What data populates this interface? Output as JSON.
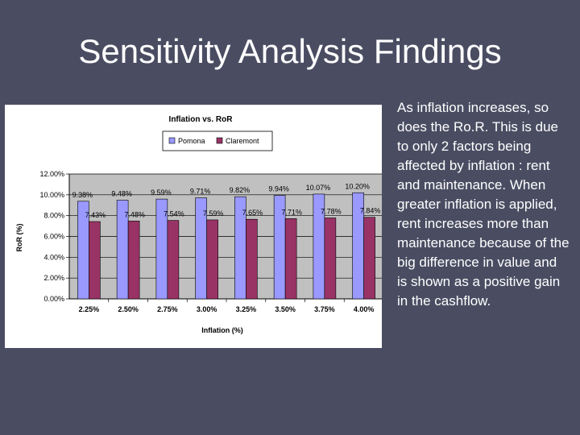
{
  "slide": {
    "title": "Sensitivity Analysis Findings",
    "body_text": "As inflation increases, so does the Ro.R. This is due to only 2 factors being affected by inflation : rent and maintenance. When greater inflation is applied, rent increases more than maintenance because of the big difference in value and is shown as a positive gain in the cashflow."
  },
  "colors": {
    "background": "#4a4d62",
    "plot_area": "#c0c0c0",
    "pomona": "#9999ff",
    "claremont": "#993366"
  },
  "chart_data": {
    "type": "bar",
    "title": "Inflation vs. RoR",
    "xlabel": "Inflation (%)",
    "ylabel": "RoR (%)",
    "categories": [
      "2.25%",
      "2.50%",
      "2.75%",
      "3.00%",
      "3.25%",
      "3.50%",
      "3.75%",
      "4.00%"
    ],
    "ylim": [
      0,
      12
    ],
    "yticks": [
      0,
      2,
      4,
      6,
      8,
      10,
      12
    ],
    "ytick_labels": [
      "0.00%",
      "2.00%",
      "4.00%",
      "6.00%",
      "8.00%",
      "10.00%",
      "12.00%"
    ],
    "grid": true,
    "legend_position": "top",
    "series": [
      {
        "name": "Pomona",
        "values": [
          9.38,
          9.48,
          9.59,
          9.71,
          9.82,
          9.94,
          10.07,
          10.2
        ],
        "labels": [
          "9.38%",
          "9.48%",
          "9.59%",
          "9.71%",
          "9.82%",
          "9.94%",
          "10.07%",
          "10.20%"
        ]
      },
      {
        "name": "Claremont",
        "values": [
          7.43,
          7.48,
          7.54,
          7.59,
          7.65,
          7.71,
          7.78,
          7.84
        ],
        "labels": [
          "7.43%",
          "7.48%",
          "7.54%",
          "7.59%",
          "7.65%",
          "7.71%",
          "7.78%",
          "7.84%"
        ]
      }
    ]
  }
}
